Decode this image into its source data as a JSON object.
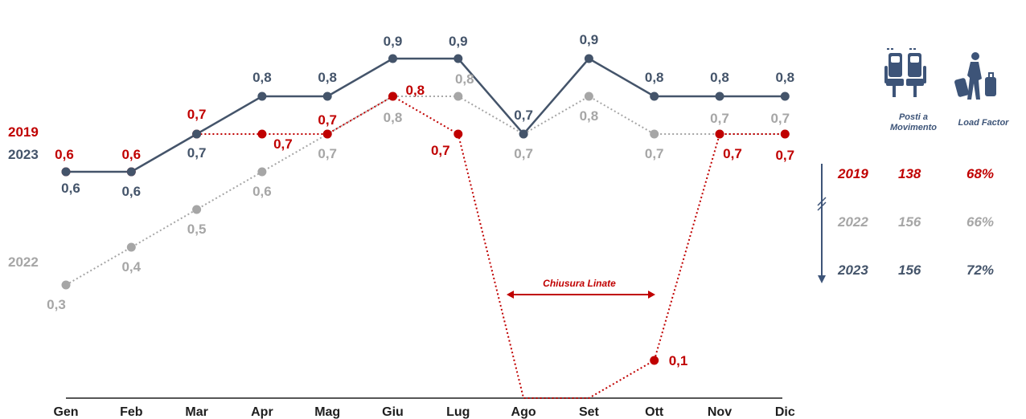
{
  "colors": {
    "s2019": "#c00000",
    "s2022": "#a6a6a6",
    "s2023": "#44546a",
    "axis": "#1e1e1e"
  },
  "chart_data": {
    "type": "line",
    "categories": [
      "Gen",
      "Feb",
      "Mar",
      "Apr",
      "Mag",
      "Giu",
      "Lug",
      "Ago",
      "Set",
      "Ott",
      "Nov",
      "Dic"
    ],
    "ylim": [
      0,
      1
    ],
    "series": [
      {
        "name": "2019",
        "key": "s2019",
        "style": "dotted",
        "values": [
          0.6,
          0.6,
          0.7,
          0.7,
          0.7,
          0.8,
          0.7,
          0.0,
          0.0,
          0.1,
          0.7,
          0.7
        ],
        "labels": [
          "0,6",
          "0,6",
          "0,7",
          "0,7",
          "0,7",
          "0,8",
          "0,7",
          "",
          "",
          "0,1",
          "0,7",
          "0,7"
        ]
      },
      {
        "name": "2022",
        "key": "s2022",
        "style": "dotted",
        "values": [
          0.3,
          0.4,
          0.5,
          0.6,
          0.7,
          0.8,
          0.8,
          0.7,
          0.8,
          0.7,
          0.7,
          0.7
        ],
        "labels": [
          "0,3",
          "0,4",
          "0,5",
          "0,6",
          "0,7",
          "0,8",
          "0,8",
          "0,7",
          "0,8",
          "0,7",
          "0,7",
          "0,7"
        ]
      },
      {
        "name": "2023",
        "key": "s2023",
        "style": "solid",
        "values": [
          0.6,
          0.6,
          0.7,
          0.8,
          0.8,
          0.9,
          0.9,
          0.7,
          0.9,
          0.8,
          0.8,
          0.8
        ],
        "labels": [
          "0,6",
          "0,6",
          "0,7",
          "0,8",
          "0,8",
          "0,9",
          "0,9",
          "0,7",
          "0,9",
          "0,8",
          "0,8",
          "0,8"
        ]
      }
    ],
    "annotation": "Chiusura Linate",
    "legend": [
      "2019",
      "2022",
      "2023"
    ]
  },
  "side_table": {
    "headers": {
      "posti": "Posti a Movimento",
      "lf": "Load Factor"
    },
    "rows": [
      {
        "year": "2019",
        "posti": "138",
        "lf": "68%",
        "key": "s2019"
      },
      {
        "year": "2022",
        "posti": "156",
        "lf": "66%",
        "key": "s2022"
      },
      {
        "year": "2023",
        "posti": "156",
        "lf": "72%",
        "key": "s2023"
      }
    ]
  },
  "icons": {
    "seats": "airplane-seats-icon",
    "traveler": "traveler-luggage-icon"
  }
}
